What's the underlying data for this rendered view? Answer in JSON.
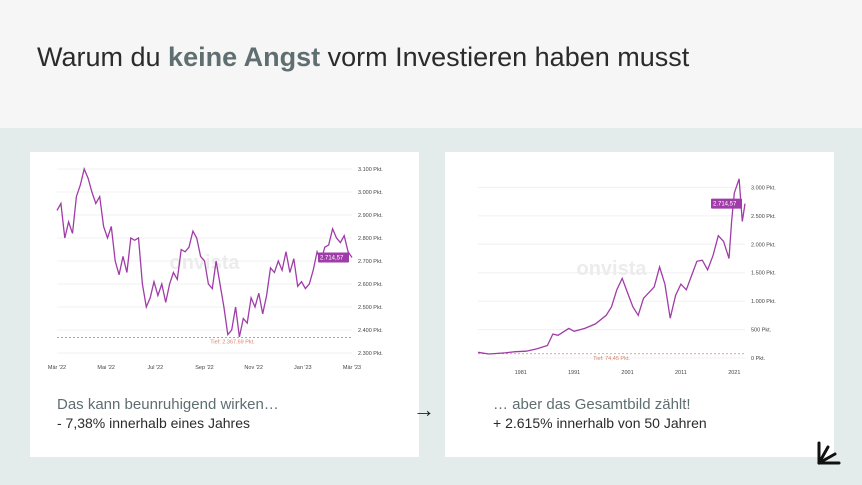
{
  "header": {
    "title_pre": "Warum du ",
    "title_bold": "keine Angst",
    "title_post": " vorm Investieren haben musst"
  },
  "colors": {
    "line": "#a03ca8",
    "low_line": "#d9826e",
    "label_bg": "#a03ca8",
    "accent": "#5f6e70"
  },
  "left": {
    "heading": "Das kann beunruhigend wirken…",
    "subtext": "- 7,38% innerhalb eines Jahres"
  },
  "right": {
    "heading": "… aber das Gesamtbild zählt!",
    "subtext": "+ 2.615% innerhalb von 50 Jahren"
  },
  "arrow_glyph": "→",
  "logo_icon": "arrow-burst-icon",
  "chart_data": [
    {
      "type": "line",
      "watermark": "onvista",
      "ylim": [
        2300,
        3100
      ],
      "yticks": [
        {
          "v": 2300,
          "l": "2.300 Pkt."
        },
        {
          "v": 2400,
          "l": "2.400 Pkt."
        },
        {
          "v": 2500,
          "l": "2.500 Pkt."
        },
        {
          "v": 2600,
          "l": "2.600 Pkt."
        },
        {
          "v": 2700,
          "l": "2.700 Pkt."
        },
        {
          "v": 2800,
          "l": "2.800 Pkt."
        },
        {
          "v": 2900,
          "l": "2.900 Pkt."
        },
        {
          "v": 3000,
          "l": "3.000 Pkt."
        },
        {
          "v": 3100,
          "l": "3.100 Pkt."
        }
      ],
      "xticks": [
        "Mär '22",
        "Mai '22",
        "Jul '22",
        "Sep '22",
        "Nov '22",
        "Jan '23",
        "Mär '23"
      ],
      "x_range": [
        "2022-03",
        "2023-03"
      ],
      "values": [
        2920,
        2950,
        2800,
        2870,
        2820,
        2980,
        3030,
        3100,
        3060,
        3000,
        2950,
        2980,
        2850,
        2800,
        2850,
        2700,
        2640,
        2720,
        2650,
        2800,
        2790,
        2800,
        2600,
        2500,
        2540,
        2610,
        2550,
        2600,
        2520,
        2600,
        2650,
        2620,
        2750,
        2740,
        2760,
        2830,
        2800,
        2720,
        2700,
        2600,
        2580,
        2700,
        2600,
        2500,
        2380,
        2400,
        2500,
        2370,
        2450,
        2430,
        2540,
        2500,
        2560,
        2470,
        2550,
        2670,
        2650,
        2700,
        2660,
        2740,
        2650,
        2710,
        2590,
        2610,
        2580,
        2600,
        2660,
        2740,
        2700,
        2760,
        2770,
        2840,
        2800,
        2780,
        2810,
        2740,
        2715
      ],
      "last_label": "2.714,57",
      "low": 2367.69,
      "low_label": "Tief: 2.367,69 Pkt."
    },
    {
      "type": "line",
      "watermark": "onvista",
      "ylim": [
        0,
        3200
      ],
      "yticks": [
        {
          "v": 0,
          "l": "0 Pkt."
        },
        {
          "v": 500,
          "l": "500 Pkt."
        },
        {
          "v": 1000,
          "l": "1.000 Pkt."
        },
        {
          "v": 1500,
          "l": "1.500 Pkt."
        },
        {
          "v": 2000,
          "l": "2.000 Pkt."
        },
        {
          "v": 2500,
          "l": "2.500 Pkt."
        },
        {
          "v": 3000,
          "l": "3.000 Pkt."
        }
      ],
      "xticks": [
        1981,
        1991,
        2001,
        2011,
        2021
      ],
      "xlim": [
        1973,
        2023
      ],
      "points": [
        [
          1973,
          100
        ],
        [
          1975,
          70
        ],
        [
          1978,
          90
        ],
        [
          1980,
          110
        ],
        [
          1982,
          120
        ],
        [
          1984,
          160
        ],
        [
          1986,
          220
        ],
        [
          1987,
          420
        ],
        [
          1988,
          400
        ],
        [
          1990,
          520
        ],
        [
          1991,
          470
        ],
        [
          1993,
          520
        ],
        [
          1995,
          600
        ],
        [
          1997,
          750
        ],
        [
          1998,
          900
        ],
        [
          1999,
          1200
        ],
        [
          2000,
          1400
        ],
        [
          2001,
          1150
        ],
        [
          2002,
          900
        ],
        [
          2003,
          750
        ],
        [
          2004,
          1050
        ],
        [
          2006,
          1250
        ],
        [
          2007,
          1600
        ],
        [
          2008,
          1300
        ],
        [
          2009,
          700
        ],
        [
          2010,
          1100
        ],
        [
          2011,
          1300
        ],
        [
          2012,
          1200
        ],
        [
          2013,
          1450
        ],
        [
          2014,
          1700
        ],
        [
          2015,
          1720
        ],
        [
          2016,
          1550
        ],
        [
          2017,
          1800
        ],
        [
          2018,
          2150
        ],
        [
          2019,
          2050
        ],
        [
          2020,
          1750
        ],
        [
          2020.5,
          2400
        ],
        [
          2021,
          2900
        ],
        [
          2021.9,
          3150
        ],
        [
          2022.5,
          2400
        ],
        [
          2023,
          2714.57
        ]
      ],
      "last_label": "2.714,57",
      "low": 74.45,
      "low_label": "Tief: 74,45 Pkt."
    }
  ]
}
